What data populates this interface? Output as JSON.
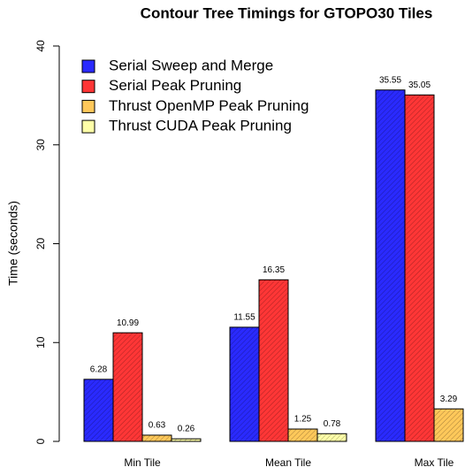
{
  "chart_data": {
    "type": "bar",
    "title": "Contour Tree Timings for GTOPO30 Tiles",
    "y_label": "Time (seconds)",
    "categories": [
      "Min Tile",
      "Mean Tile",
      "Max Tile"
    ],
    "series": [
      {
        "name": "Serial Sweep and Merge",
        "color": "#2a2aff",
        "values": [
          6.28,
          11.55,
          35.55
        ]
      },
      {
        "name": "Serial Peak Pruning",
        "color": "#ff3636",
        "values": [
          10.99,
          16.35,
          35.05
        ]
      },
      {
        "name": "Thrust OpenMP Peak Pruning",
        "color": "#ffc85a",
        "values": [
          0.63,
          1.25,
          3.29
        ]
      },
      {
        "name": "Thrust CUDA Peak Pruning",
        "color": "#ffffa8",
        "values": [
          0.26,
          0.78,
          null
        ]
      }
    ],
    "ylim": [
      0,
      40
    ],
    "yticks": [
      0,
      10,
      20,
      30,
      40
    ],
    "legend": "top-left"
  }
}
